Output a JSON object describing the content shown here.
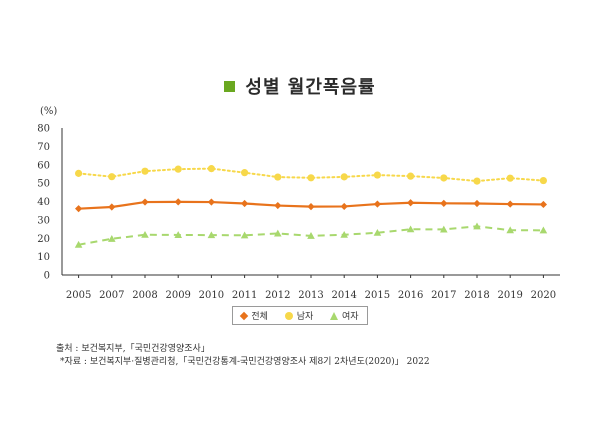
{
  "title": "성별 월간폭음률",
  "colors": {
    "title_square": "#6aa820",
    "total": "#e8731c",
    "male": "#f7d84a",
    "female": "#a8d86e",
    "axis": "#333333",
    "grid": "#bfbfbf"
  },
  "legend": {
    "total": "전체",
    "male": "남자",
    "female": "여자"
  },
  "source": {
    "line1": "출처 : 보건복지부,「국민건강영양조사」",
    "line2": "*자료 : 보건복지부·질병관리청,「국민건강통계-국민건강영양조사 제8기 2차년도(2020)」 2022"
  },
  "chart_data": {
    "type": "line",
    "title": "성별 월간폭음률",
    "ylabel": "(%)",
    "xlabel": "",
    "ylim": [
      0,
      80
    ],
    "yticks": [
      0,
      10,
      20,
      30,
      40,
      50,
      60,
      70,
      80
    ],
    "categories": [
      "2005",
      "2007",
      "2008",
      "2009",
      "2010",
      "2011",
      "2012",
      "2013",
      "2014",
      "2015",
      "2016",
      "2017",
      "2018",
      "2019",
      "2020"
    ],
    "series": [
      {
        "key": "male",
        "name": "남자",
        "marker": "circle",
        "style": "dotted",
        "values": [
          55.3,
          53.5,
          56.5,
          57.6,
          57.9,
          55.7,
          53.3,
          52.9,
          53.4,
          54.4,
          53.8,
          52.8,
          51.1,
          52.7,
          51.4
        ]
      },
      {
        "key": "total",
        "name": "전체",
        "marker": "diamond",
        "style": "solid",
        "values": [
          36.1,
          37.0,
          39.7,
          39.8,
          39.7,
          38.9,
          37.8,
          37.2,
          37.3,
          38.6,
          39.3,
          39.0,
          38.9,
          38.6,
          38.4
        ]
      },
      {
        "key": "female",
        "name": "여자",
        "marker": "triangle",
        "style": "dashed",
        "values": [
          16.5,
          19.7,
          21.9,
          21.8,
          21.7,
          21.6,
          22.6,
          21.3,
          21.9,
          23.0,
          24.9,
          24.8,
          26.5,
          24.4,
          24.3
        ]
      }
    ]
  }
}
